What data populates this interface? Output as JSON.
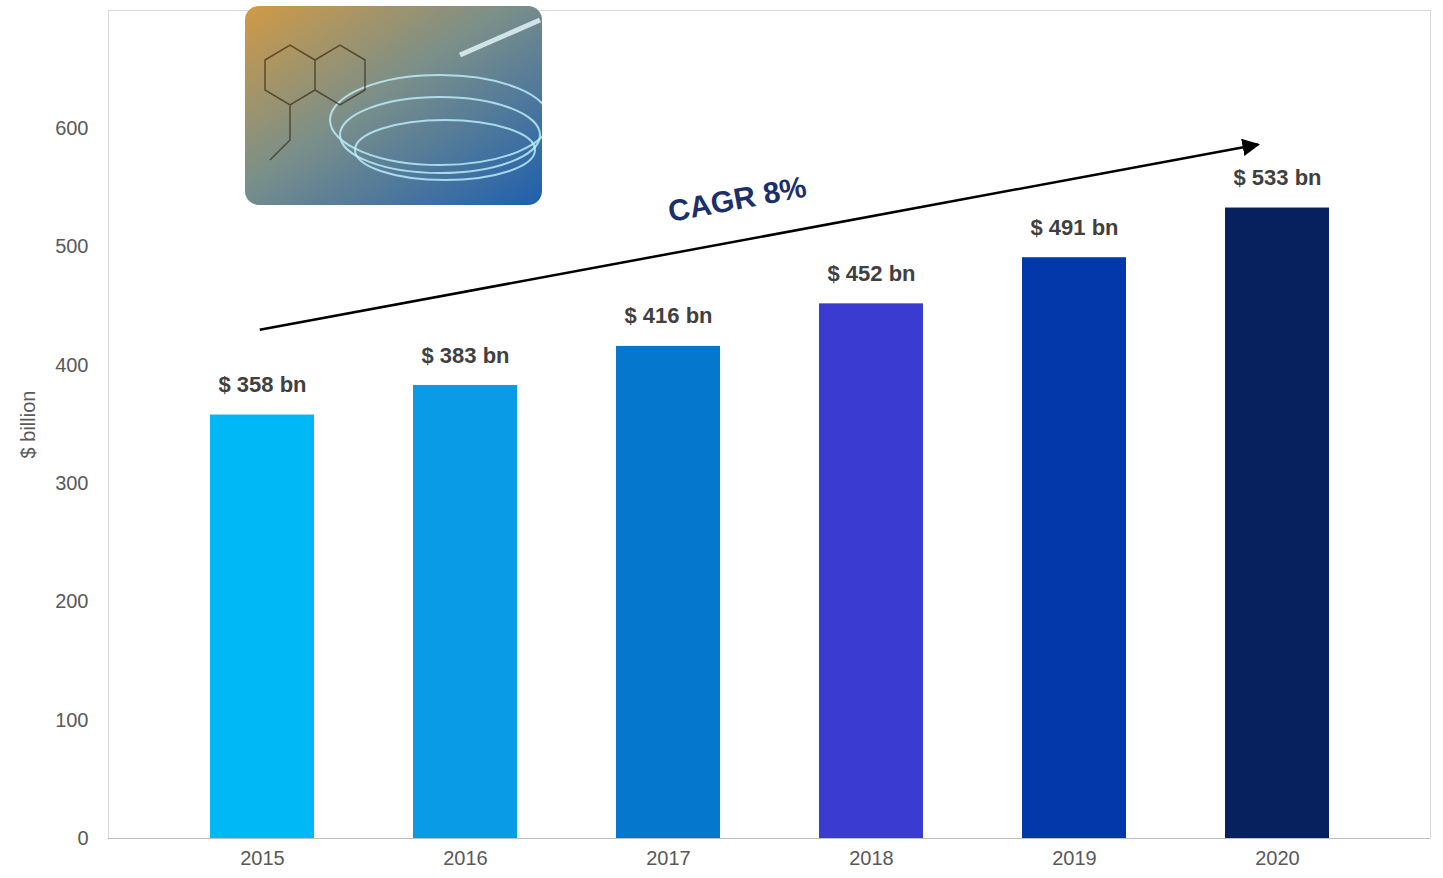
{
  "chart_data": {
    "type": "bar",
    "categories": [
      "2015",
      "2016",
      "2017",
      "2018",
      "2019",
      "2020"
    ],
    "values": [
      358,
      383,
      416,
      452,
      491,
      533
    ],
    "value_labels": [
      "$ 358 bn",
      "$ 383 bn",
      "$ 416 bn",
      "$ 452 bn",
      "$ 491 bn",
      "$ 533 bn"
    ],
    "colors": [
      "#00b8f5",
      "#0a9be6",
      "#0577cc",
      "#3a3bd0",
      "#0338ab",
      "#06215e"
    ],
    "ylabel": "$ billion",
    "ylim": [
      0,
      700
    ],
    "yticks": [
      0,
      100,
      200,
      300,
      400,
      500,
      600
    ],
    "annotation": "CAGR 8%",
    "data_labels": true,
    "grid": false
  }
}
